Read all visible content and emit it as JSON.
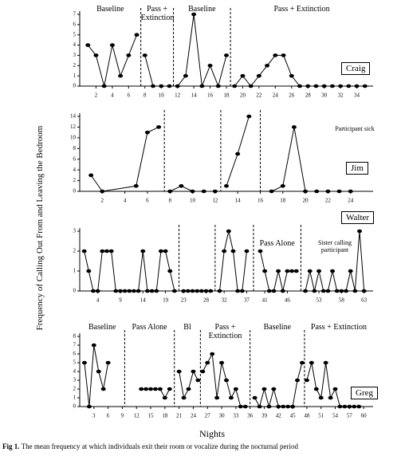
{
  "axis_labels": {
    "y": "Frequency of Calling Out From and Leaving the Bedroom",
    "x": "Nights"
  },
  "caption": {
    "prefix": "Fig 1.",
    "text": "The mean frequency at which individuals exit their room or vocalize during the nocturnal period"
  },
  "chart_data": [
    {
      "type": "line",
      "participant": "Craig",
      "color": "#000000",
      "xlim": [
        0,
        36
      ],
      "xticks": [
        2,
        4,
        6,
        8,
        10,
        12,
        14,
        16,
        18,
        20,
        22,
        24,
        26,
        28,
        30,
        32,
        34
      ],
      "ylim": [
        0,
        7
      ],
      "yticks": [
        0,
        1,
        2,
        3,
        4,
        5,
        6,
        7
      ],
      "phases": [
        {
          "label": "Baseline",
          "x": [
            1,
            2,
            3,
            4,
            5,
            6,
            7
          ],
          "values": [
            4,
            3,
            0,
            4,
            1,
            3,
            5
          ]
        },
        {
          "label": "Pass + Extinction",
          "x": [
            8,
            9,
            10,
            11
          ],
          "values": [
            3,
            0,
            0,
            0
          ]
        },
        {
          "label": "Baseline",
          "x": [
            12,
            13,
            14,
            15,
            16,
            17,
            18
          ],
          "values": [
            0,
            1,
            7,
            0,
            2,
            0,
            3
          ]
        },
        {
          "label": "Pass + Extinction",
          "x": [
            19,
            20,
            21,
            22,
            23,
            24,
            25,
            26,
            27,
            28,
            29,
            30,
            31,
            32,
            33,
            34,
            35
          ],
          "values": [
            0,
            1,
            0,
            1,
            2,
            3,
            3,
            1,
            0,
            0,
            0,
            0,
            0,
            0,
            0,
            0,
            0
          ]
        }
      ]
    },
    {
      "type": "line",
      "participant": "Jim",
      "color": "#000000",
      "xlim": [
        0,
        26
      ],
      "xticks": [
        2,
        4,
        6,
        8,
        10,
        12,
        14,
        16,
        18,
        20,
        22,
        24
      ],
      "ylim": [
        0,
        14
      ],
      "yticks": [
        0,
        2,
        4,
        6,
        8,
        10,
        12,
        14
      ],
      "annotation": "Participant sick",
      "phases": [
        {
          "x": [
            1,
            2,
            5,
            6,
            7
          ],
          "values": [
            3,
            0,
            1,
            11,
            12
          ]
        },
        {
          "x": [
            8,
            9,
            10,
            11,
            12
          ],
          "values": [
            0,
            1,
            0,
            0,
            0
          ]
        },
        {
          "x": [
            13,
            14,
            15
          ],
          "values": [
            1,
            7,
            14
          ]
        },
        {
          "x": [
            17,
            18,
            19,
            20,
            21,
            22,
            23,
            24
          ],
          "values": [
            0,
            1,
            12,
            0,
            0,
            0,
            0,
            0
          ]
        }
      ]
    },
    {
      "type": "line",
      "participant": "Walter",
      "color": "#000000",
      "xlim": [
        0,
        65
      ],
      "xticks": [
        4,
        9,
        14,
        19,
        23,
        28,
        32,
        37,
        41,
        46,
        53,
        58,
        63
      ],
      "ylim": [
        0,
        3
      ],
      "yticks": [
        0,
        1,
        2,
        3
      ],
      "annotation": "Sister calling participant",
      "phases": [
        {
          "x": [
            1,
            2,
            3,
            4,
            5,
            6,
            7,
            8,
            9,
            10,
            11,
            12,
            13,
            14,
            15,
            16,
            17,
            18,
            19,
            20,
            21
          ],
          "values": [
            2,
            1,
            0,
            0,
            2,
            2,
            2,
            0,
            0,
            0,
            0,
            0,
            0,
            2,
            0,
            0,
            0,
            2,
            2,
            1,
            0
          ]
        },
        {
          "x": [
            23,
            24,
            25,
            26,
            27,
            28,
            29
          ],
          "values": [
            0,
            0,
            0,
            0,
            0,
            0,
            0
          ]
        },
        {
          "x": [
            31,
            32,
            33,
            34,
            35,
            36,
            37
          ],
          "values": [
            0,
            2,
            3,
            2,
            0,
            0,
            2
          ]
        },
        {
          "label": "Pass Alone",
          "x": [
            40,
            41,
            42,
            43,
            44,
            45,
            46,
            47,
            48
          ],
          "values": [
            2,
            1,
            0,
            0,
            1,
            0,
            1,
            1,
            1
          ]
        },
        {
          "x": [
            50,
            51,
            52,
            53,
            54,
            55,
            56,
            57,
            58,
            59,
            60,
            61,
            62,
            63
          ],
          "values": [
            0,
            1,
            0,
            1,
            0,
            0,
            1,
            0,
            0,
            0,
            1,
            0,
            3,
            0
          ]
        }
      ]
    },
    {
      "type": "line",
      "participant": "Greg",
      "color": "#000000",
      "xlim": [
        0,
        62
      ],
      "xticks": [
        3,
        6,
        9,
        12,
        15,
        18,
        21,
        24,
        27,
        30,
        33,
        36,
        39,
        42,
        45,
        48,
        51,
        54,
        57,
        60
      ],
      "ylim": [
        0,
        8
      ],
      "yticks": [
        0,
        1,
        2,
        3,
        4,
        5,
        6,
        7,
        8
      ],
      "phases": [
        {
          "label": "Baseline",
          "x": [
            1,
            2,
            3,
            4,
            5,
            6
          ],
          "values": [
            5,
            0,
            7,
            4,
            2,
            5
          ]
        },
        {
          "label": "Pass Alone",
          "x": [
            13,
            14,
            15,
            16,
            17,
            18,
            19
          ],
          "values": [
            2,
            2,
            2,
            2,
            2,
            1,
            2
          ]
        },
        {
          "label": "Bl",
          "x": [
            21,
            22,
            23,
            24,
            25
          ],
          "values": [
            4,
            1,
            2,
            4,
            3
          ]
        },
        {
          "label": "Pass + Extinction",
          "x": [
            26,
            27,
            28,
            29,
            30,
            31,
            32,
            33,
            34,
            35
          ],
          "values": [
            4,
            5,
            6,
            1,
            5,
            3,
            1,
            2,
            0,
            0
          ]
        },
        {
          "label": "Baseline",
          "x": [
            37,
            38,
            39,
            40,
            41,
            42,
            43,
            44,
            45,
            46,
            47
          ],
          "values": [
            1,
            0,
            2,
            0,
            2,
            0,
            0,
            0,
            0,
            3,
            5
          ]
        },
        {
          "label": "Pass + Extinction",
          "x": [
            48,
            49,
            50,
            51,
            52,
            53,
            54,
            55,
            56,
            57,
            58,
            59
          ],
          "values": [
            3,
            5,
            2,
            1,
            5,
            1,
            2,
            0,
            0,
            0,
            0,
            0
          ]
        }
      ]
    }
  ]
}
